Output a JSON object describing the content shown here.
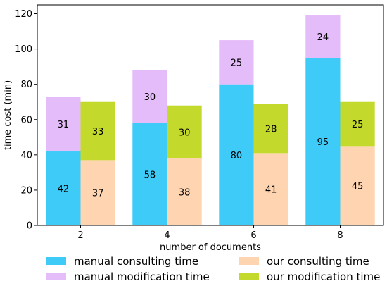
{
  "chart_data": {
    "type": "bar",
    "stacked": true,
    "grouped": true,
    "categories": [
      "2",
      "4",
      "6",
      "8"
    ],
    "xlabel": "number of documents",
    "ylabel": "time cost (min)",
    "ylim": [
      0,
      125
    ],
    "yticks": [
      0,
      20,
      40,
      60,
      80,
      100,
      120
    ],
    "grid": false,
    "legend_position": "bottom",
    "groups": [
      {
        "group": "manual",
        "series": [
          {
            "name": "manual consulting time",
            "color": "#3ecbf7",
            "values": [
              42,
              58,
              80,
              95
            ]
          },
          {
            "name": "manual modification time",
            "color": "#e4bcf9",
            "values": [
              31,
              30,
              25,
              24
            ]
          }
        ]
      },
      {
        "group": "ours",
        "series": [
          {
            "name": "our consulting time",
            "color": "#ffd4b0",
            "values": [
              37,
              38,
              41,
              45
            ]
          },
          {
            "name": "our modification time",
            "color": "#c3d92b",
            "values": [
              33,
              30,
              28,
              25
            ]
          }
        ]
      }
    ],
    "legend": [
      {
        "label": "manual consulting time",
        "color": "#3ecbf7"
      },
      {
        "label": "our consulting time",
        "color": "#ffd4b0"
      },
      {
        "label": "manual modification time",
        "color": "#e4bcf9"
      },
      {
        "label": "our modification time",
        "color": "#c3d92b"
      }
    ]
  }
}
